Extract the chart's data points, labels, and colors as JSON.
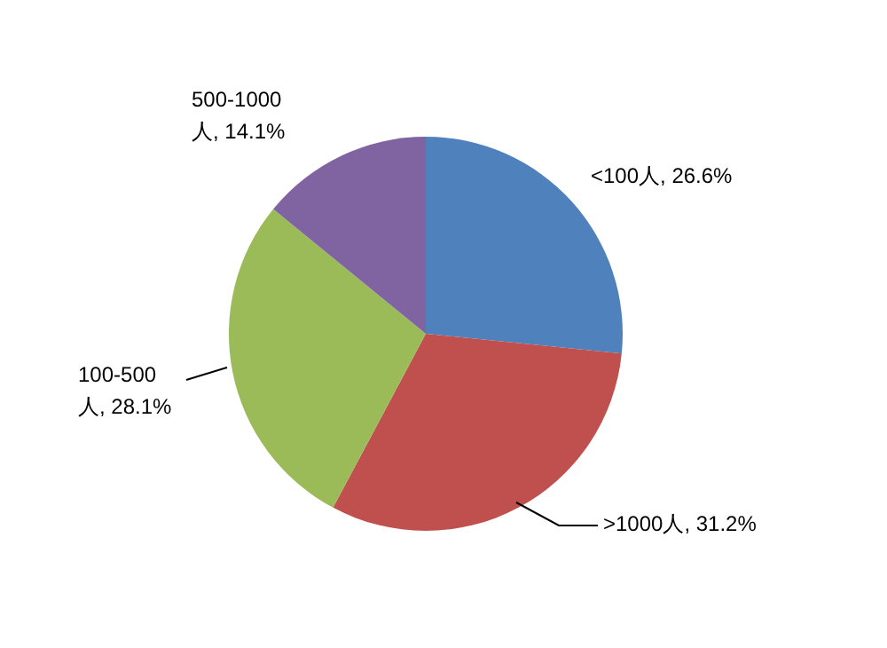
{
  "chart_data": {
    "type": "pie",
    "categories": [
      "<100人",
      ">1000人",
      "100-500人",
      "500-1000人"
    ],
    "values": [
      26.6,
      31.2,
      28.1,
      14.1
    ],
    "value_labels": [
      ", 26.6%",
      ", 31.2%",
      ", 28.1%",
      ", 14.1%"
    ],
    "colors": [
      "#4f81bd",
      "#c0504d",
      "#9bbb59",
      "#8064a2"
    ]
  }
}
